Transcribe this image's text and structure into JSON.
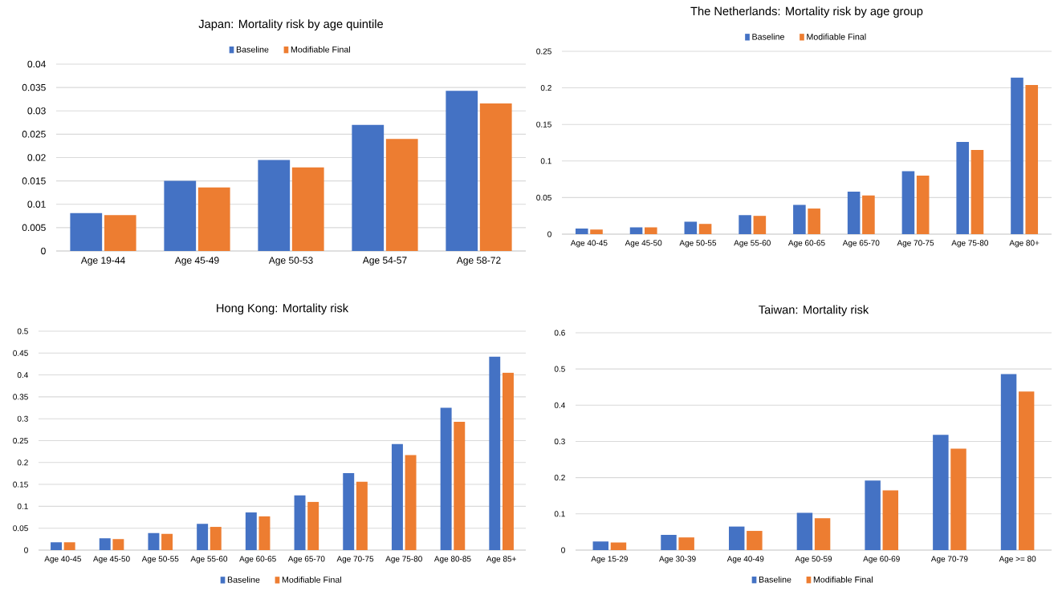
{
  "chart_data": [
    {
      "type": "bar",
      "title": "Japan: Mortality risk by age quintile",
      "categories": [
        "Age 19-44",
        "Age 45-49",
        "Age 50-53",
        "Age 54-57",
        "Age 58-72"
      ],
      "series": [
        {
          "name": "Baseline",
          "color": "#4472c4",
          "values": [
            0.0081,
            0.015,
            0.0195,
            0.027,
            0.0343
          ]
        },
        {
          "name": "Modifiable Final",
          "color": "#ed7d31",
          "values": [
            0.0077,
            0.0136,
            0.0179,
            0.024,
            0.0316
          ]
        }
      ],
      "ylim": [
        0,
        0.04
      ],
      "yticks": [
        0,
        0.005,
        0.01,
        0.015,
        0.02,
        0.025,
        0.03,
        0.035,
        0.04
      ],
      "grid": "y",
      "legend": "top"
    },
    {
      "type": "bar",
      "title": "The Netherlands: Mortality risk by age group",
      "categories": [
        "Age 40-45",
        "Age 45-50",
        "Age 50-55",
        "Age 55-60",
        "Age 60-65",
        "Age 65-70",
        "Age 70-75",
        "Age 75-80",
        "Age 80+"
      ],
      "series": [
        {
          "name": "Baseline",
          "color": "#4472c4",
          "values": [
            0.0076,
            0.0093,
            0.017,
            0.026,
            0.04,
            0.058,
            0.086,
            0.126,
            0.214
          ]
        },
        {
          "name": "Modifiable Final",
          "color": "#ed7d31",
          "values": [
            0.0063,
            0.0093,
            0.014,
            0.025,
            0.035,
            0.053,
            0.08,
            0.115,
            0.204
          ]
        }
      ],
      "ylim": [
        0,
        0.25
      ],
      "yticks": [
        0,
        0.05,
        0.1,
        0.15,
        0.2,
        0.25
      ],
      "grid": "y",
      "legend": "top"
    },
    {
      "type": "bar",
      "title": "Hong Kong: Mortality risk",
      "categories": [
        "Age 40-45",
        "Age 45-50",
        "Age 50-55",
        "Age 55-60",
        "Age 60-65",
        "Age 65-70",
        "Age 70-75",
        "Age 75-80",
        "Age 80-85",
        "Age 85+"
      ],
      "series": [
        {
          "name": "Baseline",
          "color": "#4472c4",
          "values": [
            0.018,
            0.027,
            0.039,
            0.06,
            0.086,
            0.125,
            0.176,
            0.242,
            0.325,
            0.442
          ]
        },
        {
          "name": "Modifiable Final",
          "color": "#ed7d31",
          "values": [
            0.018,
            0.025,
            0.037,
            0.053,
            0.077,
            0.11,
            0.156,
            0.217,
            0.293,
            0.405
          ]
        }
      ],
      "ylim": [
        0,
        0.5
      ],
      "yticks": [
        0,
        0.05,
        0.1,
        0.15,
        0.2,
        0.25,
        0.3,
        0.35,
        0.4,
        0.45,
        0.5
      ],
      "grid": "y",
      "legend": "bottom"
    },
    {
      "type": "bar",
      "title": "Taiwan: Mortality risk",
      "categories": [
        "Age 15-29",
        "Age 30-39",
        "Age 40-49",
        "Age 50-59",
        "Age 60-69",
        "Age 70-79",
        "Age >= 80"
      ],
      "series": [
        {
          "name": "Baseline",
          "color": "#4472c4",
          "values": [
            0.024,
            0.042,
            0.065,
            0.103,
            0.192,
            0.318,
            0.486
          ]
        },
        {
          "name": "Modifiable Final",
          "color": "#ed7d31",
          "values": [
            0.021,
            0.035,
            0.053,
            0.088,
            0.165,
            0.28,
            0.438
          ]
        }
      ],
      "ylim": [
        0,
        0.6
      ],
      "yticks": [
        0,
        0.1,
        0.2,
        0.3,
        0.4,
        0.5,
        0.6
      ],
      "grid": "y",
      "legend": "bottom"
    }
  ]
}
